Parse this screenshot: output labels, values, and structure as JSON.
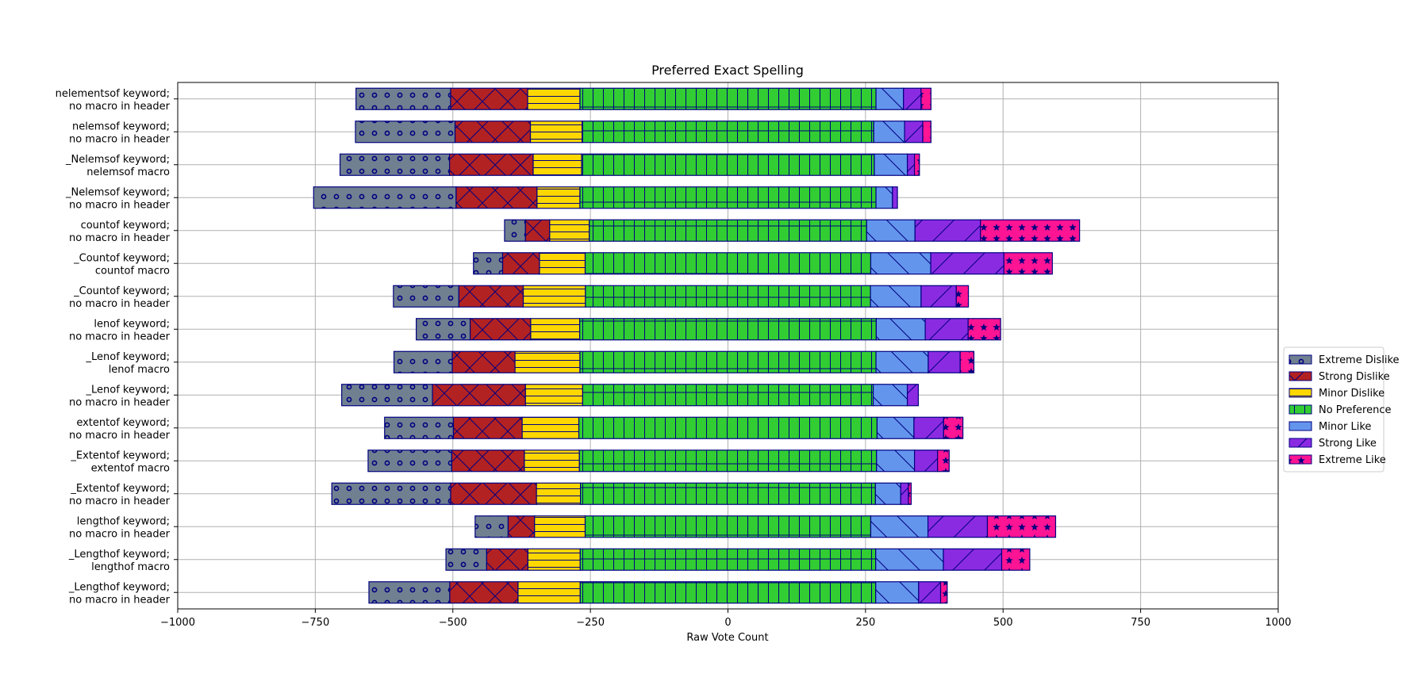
{
  "chart_data": {
    "type": "bar",
    "orientation": "horizontal-diverging-stacked",
    "title": "Preferred Exact Spelling",
    "xlabel": "Raw Vote Count",
    "ylabel": "",
    "xlim": [
      -1000,
      1000
    ],
    "xticks": [
      -1000,
      -750,
      -500,
      -250,
      0,
      250,
      500,
      750,
      1000
    ],
    "xtick_labels": [
      "−1000",
      "−750",
      "−500",
      "−250",
      "0",
      "250",
      "500",
      "750",
      "1000"
    ],
    "grid": true,
    "legend": "right",
    "categories": [
      [
        "nelementsof keyword;",
        "no macro in header"
      ],
      [
        "nelemsof keyword;",
        "no macro in header"
      ],
      [
        "_Nelemsof keyword;",
        "nelemsof macro"
      ],
      [
        "_Nelemsof keyword;",
        "no macro in header"
      ],
      [
        "countof keyword;",
        "no macro in header"
      ],
      [
        "_Countof keyword;",
        "countof macro"
      ],
      [
        "_Countof keyword;",
        "no macro in header"
      ],
      [
        "lenof keyword;",
        "no macro in header"
      ],
      [
        "_Lenof keyword;",
        "lenof macro"
      ],
      [
        "_Lenof keyword;",
        "no macro in header"
      ],
      [
        "extentof keyword;",
        "no macro in header"
      ],
      [
        "_Extentof keyword;",
        "extentof macro"
      ],
      [
        "_Extentof keyword;",
        "no macro in header"
      ],
      [
        "lengthof keyword;",
        "no macro in header"
      ],
      [
        "_Lengthof keyword;",
        "lengthof macro"
      ],
      [
        "_Lengthof keyword;",
        "no macro in header"
      ]
    ],
    "series": [
      {
        "name": "Extreme Dislike",
        "color": "#708090",
        "pattern": "circles",
        "values": [
          172,
          181,
          199,
          259,
          38,
          53,
          119,
          98,
          106,
          165,
          125,
          152,
          216,
          60,
          74,
          147
        ]
      },
      {
        "name": "Strong Dislike",
        "color": "#B22222",
        "pattern": "crosshatch",
        "values": [
          140,
          137,
          152,
          147,
          44,
          67,
          117,
          110,
          114,
          169,
          125,
          132,
          156,
          48,
          75,
          124
        ]
      },
      {
        "name": "Minor Dislike",
        "color": "#FFD700",
        "pattern": "horizontal",
        "values": [
          95,
          94,
          88,
          78,
          72,
          83,
          113,
          89,
          118,
          104,
          103,
          100,
          80,
          92,
          95,
          113
        ]
      },
      {
        "name": "No Preference",
        "color": "#32CD32",
        "pattern": "grid",
        "values": [
          538,
          530,
          532,
          538,
          504,
          519,
          518,
          539,
          538,
          528,
          542,
          540,
          536,
          519,
          537,
          537
        ]
      },
      {
        "name": "Minor Like",
        "color": "#6495ED",
        "pattern": "backslash",
        "values": [
          50,
          56,
          60,
          30,
          88,
          109,
          92,
          89,
          95,
          62,
          67,
          69,
          46,
          104,
          123,
          78
        ]
      },
      {
        "name": "Strong Like",
        "color": "#8A2BE2",
        "pattern": "slash",
        "values": [
          32,
          33,
          13,
          9,
          119,
          133,
          64,
          78,
          58,
          20,
          54,
          42,
          14,
          108,
          106,
          40
        ]
      },
      {
        "name": "Extreme Like",
        "color": "#FF1493",
        "pattern": "stars",
        "values": [
          18,
          15,
          9,
          0,
          180,
          88,
          22,
          59,
          25,
          0,
          35,
          21,
          5,
          124,
          51,
          12
        ]
      }
    ]
  },
  "style": {
    "edge_color": "#000080",
    "hatch_color": "#000080",
    "grid_color": "#b0b0b0"
  }
}
